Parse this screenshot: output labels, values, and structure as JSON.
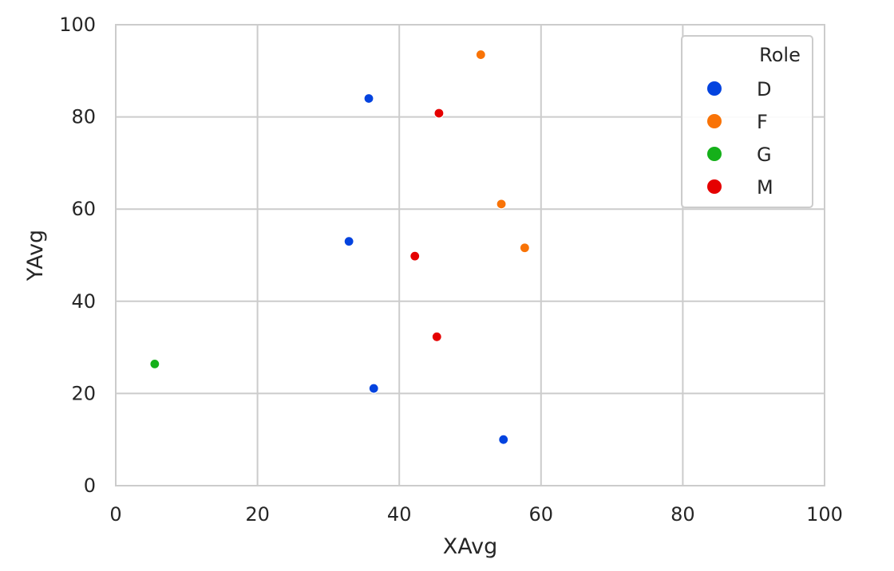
{
  "chart_data": {
    "type": "scatter",
    "title": "",
    "xlabel": "XAvg",
    "ylabel": "YAvg",
    "xlim": [
      0,
      100
    ],
    "ylim": [
      0,
      100
    ],
    "xticks": [
      "0",
      "20",
      "40",
      "60",
      "80",
      "100"
    ],
    "yticks": [
      "0",
      "20",
      "40",
      "60",
      "80",
      "100"
    ],
    "grid": true,
    "legend": {
      "title": "Role",
      "placement": "top-right"
    },
    "series": [
      {
        "name": "D",
        "color": "#0343df",
        "points": [
          [
            35.7,
            84.0
          ],
          [
            32.9,
            53.0
          ],
          [
            36.4,
            21.1
          ],
          [
            54.7,
            10.0
          ]
        ]
      },
      {
        "name": "F",
        "color": "#f97306",
        "points": [
          [
            51.5,
            93.5
          ],
          [
            54.4,
            61.1
          ],
          [
            57.7,
            51.6
          ]
        ]
      },
      {
        "name": "G",
        "color": "#15b01a",
        "points": [
          [
            5.5,
            26.4
          ]
        ]
      },
      {
        "name": "M",
        "color": "#e50000",
        "points": [
          [
            45.6,
            80.8
          ],
          [
            42.2,
            49.8
          ],
          [
            45.3,
            32.3
          ]
        ]
      }
    ]
  }
}
